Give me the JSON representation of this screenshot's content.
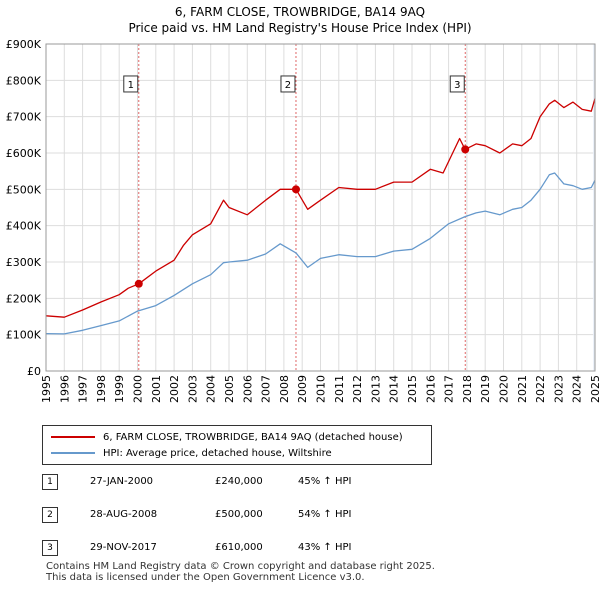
{
  "header": {
    "title": "6, FARM CLOSE, TROWBRIDGE, BA14 9AQ",
    "subtitle": "Price paid vs. HM Land Registry's House Price Index (HPI)"
  },
  "colors": {
    "property": "#cc0000",
    "hpi": "#6699cc",
    "marker_line": "#e06666",
    "shade": "#e8eef8"
  },
  "legend": {
    "property_label": "6, FARM CLOSE, TROWBRIDGE, BA14 9AQ (detached house)",
    "hpi_label": "HPI: Average price, detached house, Wiltshire"
  },
  "sales": [
    {
      "num": "1",
      "date": "27-JAN-2000",
      "price": "£240,000",
      "hpi": "45% ↑ HPI"
    },
    {
      "num": "2",
      "date": "28-AUG-2008",
      "price": "£500,000",
      "hpi": "54% ↑ HPI"
    },
    {
      "num": "3",
      "date": "29-NOV-2017",
      "price": "£610,000",
      "hpi": "43% ↑ HPI"
    }
  ],
  "footer": {
    "line1": "Contains HM Land Registry data © Crown copyright and database right 2025.",
    "line2": "This data is licensed under the Open Government Licence v3.0."
  },
  "chart_data": {
    "type": "line",
    "title": "6, FARM CLOSE, TROWBRIDGE, BA14 9AQ",
    "subtitle": "Price paid vs. HM Land Registry's House Price Index (HPI)",
    "xlim": [
      1995,
      2025
    ],
    "ylim": [
      0,
      900000
    ],
    "x_ticks": [
      1995,
      1996,
      1997,
      1998,
      1999,
      2000,
      2001,
      2002,
      2003,
      2004,
      2005,
      2006,
      2007,
      2008,
      2009,
      2010,
      2011,
      2012,
      2013,
      2014,
      2015,
      2016,
      2017,
      2018,
      2019,
      2020,
      2021,
      2022,
      2023,
      2024,
      2025
    ],
    "y_ticks": [
      {
        "value": 0,
        "label": "£0"
      },
      {
        "value": 100000,
        "label": "£100K"
      },
      {
        "value": 200000,
        "label": "£200K"
      },
      {
        "value": 300000,
        "label": "£300K"
      },
      {
        "value": 400000,
        "label": "£400K"
      },
      {
        "value": 500000,
        "label": "£500K"
      },
      {
        "value": 600000,
        "label": "£600K"
      },
      {
        "value": 700000,
        "label": "£700K"
      },
      {
        "value": 800000,
        "label": "£800K"
      },
      {
        "value": 900000,
        "label": "£900K"
      }
    ],
    "grid": true,
    "series": [
      {
        "name": "6, FARM CLOSE, TROWBRIDGE, BA14 9AQ (detached house)",
        "x": [
          1995,
          1996,
          1997,
          1998,
          1999,
          1999.5,
          2000.07,
          2001,
          2002,
          2002.5,
          2003,
          2004,
          2004.7,
          2005,
          2006,
          2007,
          2007.8,
          2008.66,
          2009.3,
          2010,
          2011,
          2012,
          2013,
          2014,
          2015,
          2016,
          2016.7,
          2017.6,
          2017.9,
          2018.5,
          2019,
          2019.8,
          2020.5,
          2021,
          2021.5,
          2022,
          2022.5,
          2022.8,
          2023.3,
          2023.8,
          2024.3,
          2024.8,
          2025
        ],
        "values": [
          152000,
          148000,
          168000,
          190000,
          210000,
          228000,
          240000,
          275000,
          305000,
          345000,
          375000,
          405000,
          470000,
          450000,
          430000,
          470000,
          500000,
          500000,
          445000,
          470000,
          505000,
          500000,
          500000,
          520000,
          520000,
          555000,
          545000,
          640000,
          610000,
          625000,
          620000,
          600000,
          625000,
          620000,
          640000,
          700000,
          735000,
          745000,
          725000,
          740000,
          720000,
          715000,
          750000
        ]
      },
      {
        "name": "HPI: Average price, detached house, Wiltshire",
        "x": [
          1995,
          1996,
          1997,
          1998,
          1999,
          2000,
          2001,
          2002,
          2003,
          2004,
          2004.7,
          2005,
          2006,
          2007,
          2007.8,
          2008.66,
          2009.3,
          2010,
          2011,
          2012,
          2013,
          2014,
          2015,
          2016,
          2017,
          2017.9,
          2018.5,
          2019,
          2019.8,
          2020.5,
          2021,
          2021.5,
          2022,
          2022.5,
          2022.8,
          2023.3,
          2023.8,
          2024.3,
          2024.8,
          2025
        ],
        "values": [
          103000,
          102000,
          112000,
          125000,
          138000,
          165000,
          180000,
          208000,
          240000,
          265000,
          298000,
          300000,
          305000,
          322000,
          350000,
          325000,
          285000,
          310000,
          320000,
          315000,
          315000,
          330000,
          335000,
          365000,
          405000,
          425000,
          435000,
          440000,
          430000,
          445000,
          450000,
          470000,
          500000,
          540000,
          545000,
          515000,
          510000,
          500000,
          505000,
          525000
        ]
      }
    ],
    "sale_points": [
      {
        "num": "1",
        "x": 2000.07,
        "value": 240000
      },
      {
        "num": "2",
        "x": 2008.66,
        "value": 500000
      },
      {
        "num": "3",
        "x": 2017.91,
        "value": 610000
      }
    ],
    "marker_label_value": 790000,
    "shaded_region": [
      2024.9,
      2025
    ]
  }
}
